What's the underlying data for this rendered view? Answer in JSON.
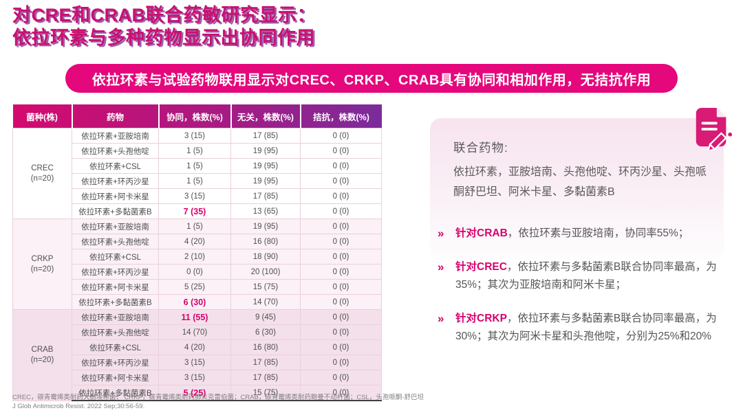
{
  "slide": {
    "title_line1": "对CRE和CRAB联合药敏研究显示：",
    "title_line2": "依拉环素与多种药物显示出协同作用",
    "banner": "依拉环素与试验药物联用显示对CREC、CRKP、CRAB具有协同和相加作用，无拮抗作用"
  },
  "colors": {
    "accent_magenta": "#E5077C",
    "title_magenta": "#C9116E",
    "title_shadow_purple": "#7B2B9B",
    "header_gradient_left": "#D40A6E",
    "header_gradient_right": "#7B2B9B",
    "highlight_value": "#D6006D",
    "group_crkp_bg": "#FBF1F7",
    "group_crab_bg": "#F4E0EB",
    "panel_bg_top": "#F7E3EE"
  },
  "table": {
    "headers": [
      "菌种(株)",
      "药物",
      "协同，株数(%)",
      "无关，株数(%)",
      "拮抗，株数(%)"
    ],
    "groups": [
      {
        "species": "CREC",
        "n": "(n=20)",
        "rows": [
          {
            "drug": "依拉环素+亚胺培南",
            "synergy": "3 (15)",
            "none": "17 (85)",
            "antagonism": "0 (0)",
            "highlight": false
          },
          {
            "drug": "依拉环素+头孢他啶",
            "synergy": "1 (5)",
            "none": "19 (95)",
            "antagonism": "0 (0)",
            "highlight": false
          },
          {
            "drug": "依拉环素+CSL",
            "synergy": "1 (5)",
            "none": "19 (95)",
            "antagonism": "0 (0)",
            "highlight": false
          },
          {
            "drug": "依拉环素+环丙沙星",
            "synergy": "1 (5)",
            "none": "19 (95)",
            "antagonism": "0 (0)",
            "highlight": false
          },
          {
            "drug": "依拉环素+阿卡米星",
            "synergy": "3 (15)",
            "none": "17 (85)",
            "antagonism": "0 (0)",
            "highlight": false
          },
          {
            "drug": "依拉环素+多黏菌素B",
            "synergy": "7 (35)",
            "none": "13 (65)",
            "antagonism": "0 (0)",
            "highlight": true
          }
        ]
      },
      {
        "species": "CRKP",
        "n": "(n=20)",
        "rows": [
          {
            "drug": "依拉环素+亚胺培南",
            "synergy": "1 (5)",
            "none": "19 (95)",
            "antagonism": "0 (0)",
            "highlight": false
          },
          {
            "drug": "依拉环素+头孢他啶",
            "synergy": "4 (20)",
            "none": "16 (80)",
            "antagonism": "0 (0)",
            "highlight": false
          },
          {
            "drug": "依拉环素+CSL",
            "synergy": "2 (10)",
            "none": "18 (90)",
            "antagonism": "0 (0)",
            "highlight": false
          },
          {
            "drug": "依拉环素+环丙沙星",
            "synergy": "0 (0)",
            "none": "20 (100)",
            "antagonism": "0 (0)",
            "highlight": false
          },
          {
            "drug": "依拉环素+阿卡米星",
            "synergy": "5 (25)",
            "none": "15 (75)",
            "antagonism": "0 (0)",
            "highlight": false
          },
          {
            "drug": "依拉环素+多黏菌素B",
            "synergy": "6 (30)",
            "none": "14 (70)",
            "antagonism": "0 (0)",
            "highlight": true
          }
        ]
      },
      {
        "species": "CRAB",
        "n": "(n=20)",
        "rows": [
          {
            "drug": "依拉环素+亚胺培南",
            "synergy": "11 (55)",
            "none": "9 (45)",
            "antagonism": "0 (0)",
            "highlight": true
          },
          {
            "drug": "依拉环素+头孢他啶",
            "synergy": "14 (70)",
            "none": "6 (30)",
            "antagonism": "0 (0)",
            "highlight": false
          },
          {
            "drug": "依拉环素+CSL",
            "synergy": "4 (20)",
            "none": "16 (80)",
            "antagonism": "0 (0)",
            "highlight": false
          },
          {
            "drug": "依拉环素+环丙沙星",
            "synergy": "3 (15)",
            "none": "17 (85)",
            "antagonism": "0 (0)",
            "highlight": false
          },
          {
            "drug": "依拉环素+阿卡米星",
            "synergy": "3 (15)",
            "none": "17 (85)",
            "antagonism": "0 (0)",
            "highlight": false
          },
          {
            "drug": "依拉环素+多黏菌素B",
            "synergy": "5 (25)",
            "none": "15 (75)",
            "antagonism": "0 (0)",
            "highlight": true
          }
        ]
      }
    ]
  },
  "panel": {
    "heading": "联合药物:",
    "body": "依拉环素，亚胺培南、头孢他啶、环丙沙星、头孢哌酮舒巴坦、阿米卡星、多黏菌素B",
    "icon": "document-pencil-icon"
  },
  "bullets": [
    {
      "marker": "»",
      "lead": "针对CRAB",
      "text": "，依拉环素与亚胺培南，协同率55%；"
    },
    {
      "marker": "»",
      "lead": "针对CREC",
      "text": "，依拉环素与多黏菌素B联合协同率最高，为35%；其次为亚胺培南和阿米卡星；"
    },
    {
      "marker": "»",
      "lead": "针对CRKP",
      "text": "，依拉环素与多黏菌素B联合协同率最高，为30%；其次为阿米卡星和头孢他啶，分别为25%和20%"
    }
  ],
  "footnote": {
    "line1": "CREC，碳青霉烯类耐药大肠埃希菌； CRKP，碳青霉烯类耐药肺炎克雷伯菌；CRAB，碳青霉烯类耐药鲍曼不动杆菌；CSL，头孢哌酮-舒巴坦",
    "line2": "J Glob Antimicrob Resist. 2022 Sep;30:56-59."
  }
}
